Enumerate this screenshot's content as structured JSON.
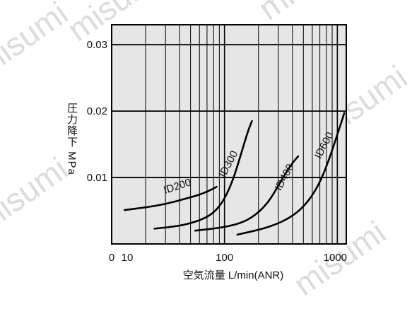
{
  "watermark": "misumi",
  "chart_data": {
    "type": "line",
    "title": "",
    "xlabel": "空気流量 L/min(ANR)",
    "ylabel": "圧力降下 MPa",
    "xscale": "log",
    "xlim": [
      10,
      1200
    ],
    "ylim": [
      0,
      0.033
    ],
    "grid": true,
    "x_tick_labels": [
      "0",
      "10",
      "100",
      "1000"
    ],
    "y_tick_labels": [
      "0.01",
      "0.02",
      "0.03"
    ],
    "y_ticks": [
      0.01,
      0.02,
      0.03
    ],
    "series": [
      {
        "name": "ID200",
        "label_pos": [
          39,
          0.0082
        ],
        "x": [
          13,
          20,
          30,
          45,
          60,
          75,
          85
        ],
        "y": [
          0.0051,
          0.0055,
          0.006,
          0.0068,
          0.0074,
          0.0081,
          0.0086
        ]
      },
      {
        "name": "ID300",
        "label_pos": [
          115,
          0.0118
        ],
        "x": [
          24,
          40,
          60,
          80,
          100,
          120,
          140,
          160,
          175
        ],
        "y": [
          0.0023,
          0.0027,
          0.0035,
          0.0046,
          0.0067,
          0.0098,
          0.0135,
          0.0168,
          0.0185
        ]
      },
      {
        "name": "ID400",
        "label_pos": [
          360,
          0.0098
        ],
        "x": [
          55,
          100,
          150,
          200,
          250,
          300,
          350,
          400,
          450
        ],
        "y": [
          0.002,
          0.0025,
          0.0033,
          0.0047,
          0.0065,
          0.0088,
          0.0107,
          0.0122,
          0.0132
        ]
      },
      {
        "name": "ID600",
        "label_pos": [
          810,
          0.0146
        ],
        "x": [
          130,
          250,
          400,
          550,
          700,
          850,
          1000,
          1100,
          1150
        ],
        "y": [
          0.0014,
          0.0025,
          0.0041,
          0.0063,
          0.0092,
          0.0128,
          0.0165,
          0.0186,
          0.0197
        ]
      }
    ]
  }
}
